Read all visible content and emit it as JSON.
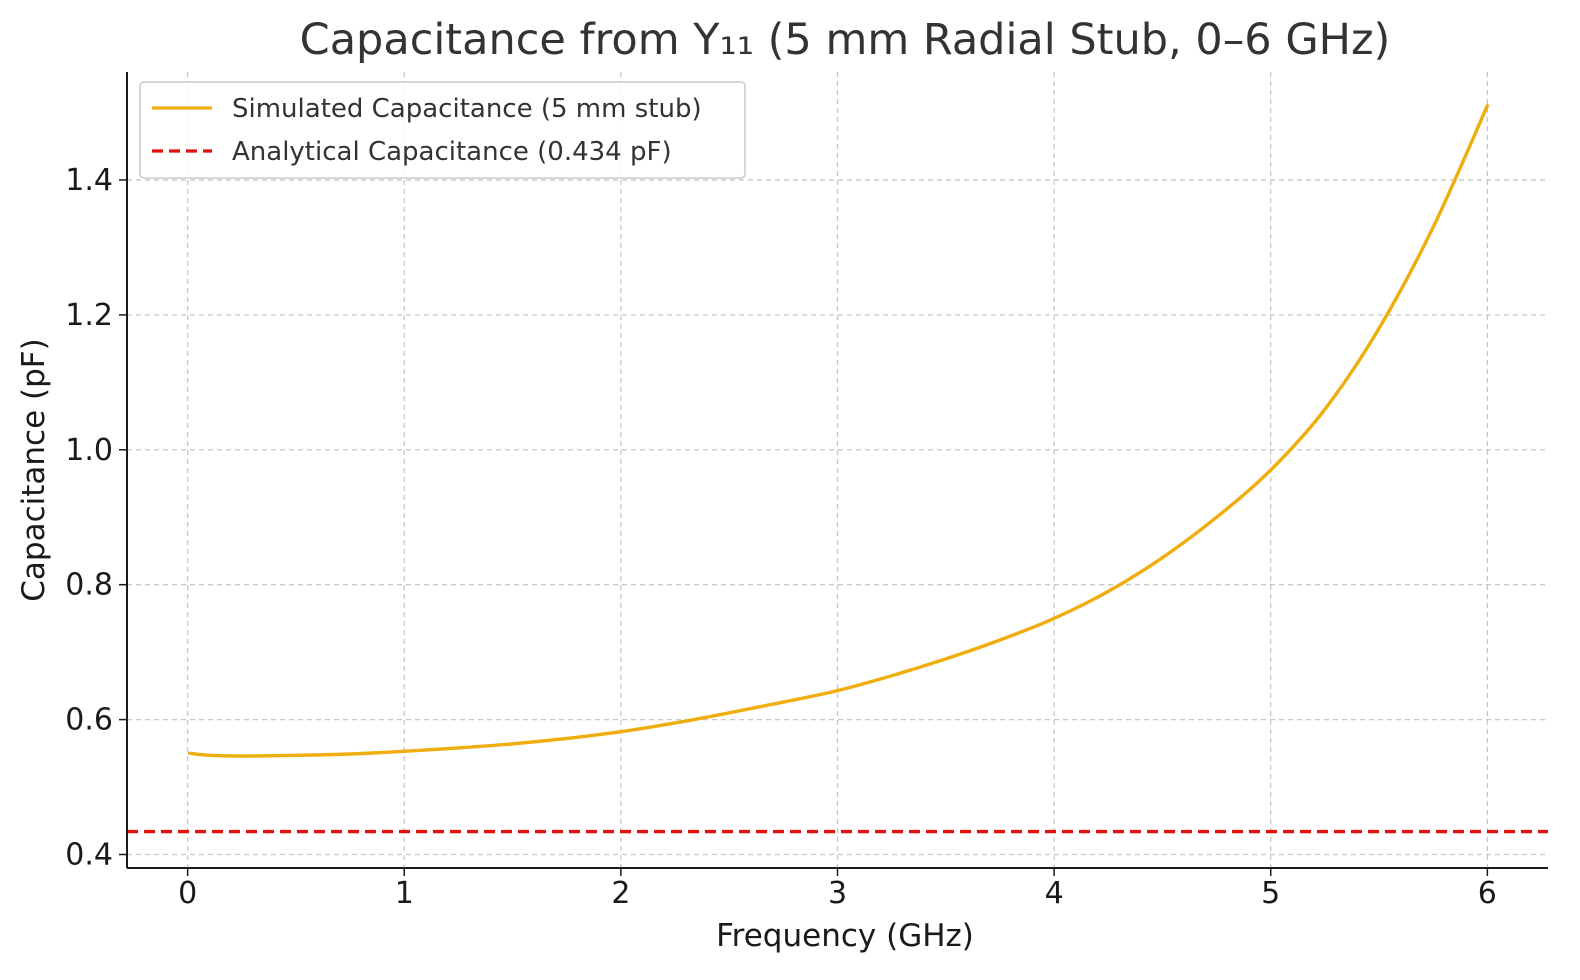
{
  "chart_data": {
    "type": "line",
    "title": "Capacitance from Y₁₁ (5 mm Radial Stub, 0–6 GHz)",
    "xlabel": "Frequency (GHz)",
    "ylabel": "Capacitance (pF)",
    "xlim": [
      -0.28,
      6.28
    ],
    "ylim": [
      0.38,
      1.56
    ],
    "x_ticks": [
      0,
      1,
      2,
      3,
      4,
      5,
      6
    ],
    "x_tick_labels": [
      "0",
      "1",
      "2",
      "3",
      "4",
      "5",
      "6"
    ],
    "y_ticks": [
      0.4,
      0.6,
      0.8,
      1.0,
      1.2,
      1.4
    ],
    "y_tick_labels": [
      "0.4",
      "0.6",
      "0.8",
      "1.0",
      "1.2",
      "1.4"
    ],
    "grid": true,
    "legend_position": "top-left",
    "series": [
      {
        "name": "Simulated Capacitance (5 mm stub)",
        "color": "#f0ad0e",
        "style": "solid",
        "x": [
          0.01,
          0.1,
          0.25,
          0.5,
          0.75,
          1.0,
          1.25,
          1.5,
          1.75,
          2.0,
          2.25,
          2.5,
          2.75,
          3.0,
          3.25,
          3.5,
          3.75,
          4.0,
          4.25,
          4.5,
          4.75,
          5.0,
          5.25,
          5.5,
          5.75,
          6.0
        ],
        "y": [
          0.55,
          0.547,
          0.546,
          0.547,
          0.549,
          0.553,
          0.558,
          0.564,
          0.572,
          0.582,
          0.595,
          0.61,
          0.626,
          0.643,
          0.665,
          0.69,
          0.718,
          0.75,
          0.79,
          0.84,
          0.9,
          0.97,
          1.06,
          1.18,
          1.33,
          1.51
        ]
      },
      {
        "name": "Analytical Capacitance (0.434 pF)",
        "color": "#e3120b",
        "style": "dashed",
        "value": 0.434
      }
    ]
  }
}
